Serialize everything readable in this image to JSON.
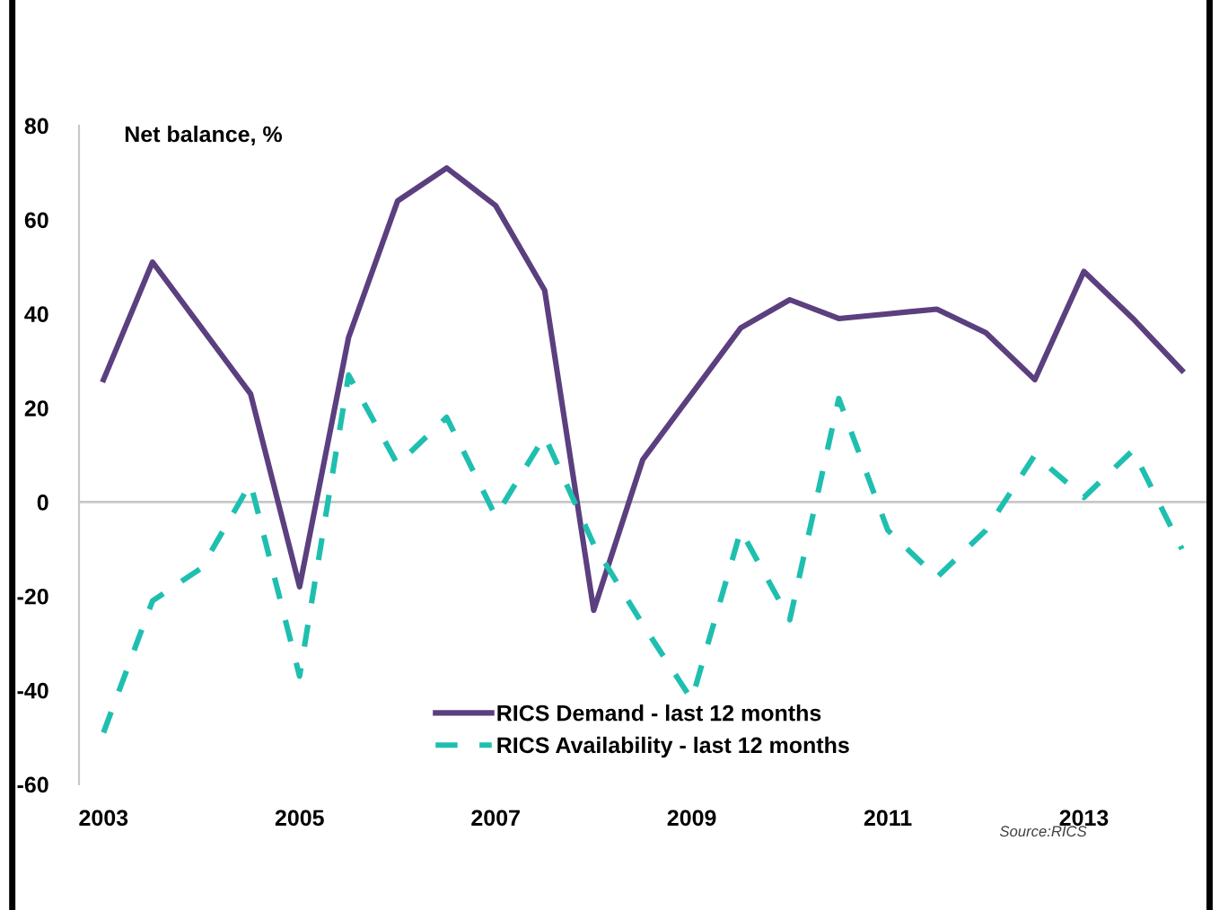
{
  "chart_data": {
    "type": "line",
    "ylabel": "Net balance, %",
    "x": [
      2003,
      2003.5,
      2004,
      2004.5,
      2005,
      2005.5,
      2006,
      2006.5,
      2007,
      2007.5,
      2008,
      2008.5,
      2009,
      2009.5,
      2010,
      2010.5,
      2011,
      2011.5,
      2012,
      2012.5,
      2013,
      2013.5,
      2014
    ],
    "series": [
      {
        "name": "RICS Demand - last 12 months",
        "color": "#5b3f7f",
        "line_style": "solid",
        "values": [
          26,
          51,
          37,
          23,
          -18,
          35,
          64,
          71,
          63,
          45,
          -23,
          9,
          23,
          37,
          43,
          39,
          40,
          41,
          36,
          26,
          49,
          39,
          28
        ]
      },
      {
        "name": "RICS Availability - last 12 months",
        "color": "#1fbfb0",
        "line_style": "dashed",
        "values": [
          -49,
          -21,
          -14,
          4,
          -37,
          27,
          8,
          18,
          -3,
          14,
          -9,
          -26,
          -42,
          -6,
          -25,
          22,
          -6,
          -16,
          -6,
          10,
          1,
          11,
          -10
        ]
      }
    ],
    "xlim": [
      2002.75,
      2014.25
    ],
    "xticks": [
      2003,
      2005,
      2007,
      2009,
      2011,
      2013
    ],
    "ylim": [
      -60,
      80
    ],
    "yticks": [
      -60,
      -40,
      -20,
      0,
      20,
      40,
      60,
      80
    ],
    "ref_lines": [
      {
        "axis": "y",
        "value": 0,
        "color": "#c8c8c8"
      }
    ],
    "grid": false,
    "legend": "bottom",
    "marker": "none",
    "annotations": [
      "Source:RICS"
    ]
  }
}
